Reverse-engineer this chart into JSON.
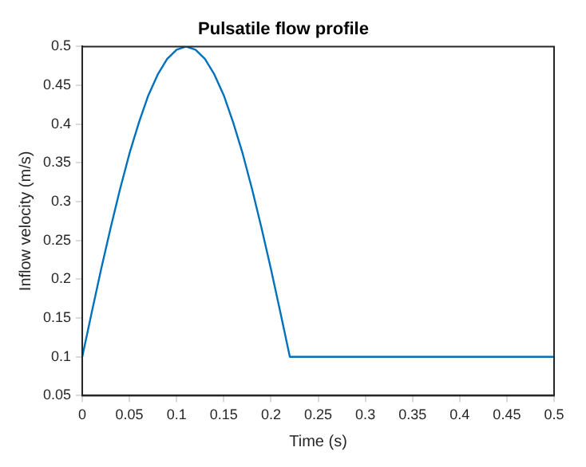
{
  "chart_data": {
    "type": "line",
    "title": "Pulsatile flow profile",
    "xlabel": "Time (s)",
    "ylabel": "Inflow velocity (m/s)",
    "x": [
      0,
      0.01,
      0.02,
      0.03,
      0.04,
      0.05,
      0.06,
      0.07,
      0.08,
      0.09,
      0.1,
      0.11,
      0.12,
      0.13,
      0.14,
      0.15,
      0.16,
      0.17,
      0.18,
      0.19,
      0.2,
      0.21,
      0.22,
      0.5
    ],
    "series": [
      {
        "color": "#0072bd",
        "values": [
          0.1,
          0.157,
          0.213,
          0.266,
          0.316,
          0.362,
          0.402,
          0.437,
          0.464,
          0.484,
          0.496,
          0.5,
          0.496,
          0.484,
          0.464,
          0.437,
          0.402,
          0.362,
          0.316,
          0.266,
          0.213,
          0.157,
          0.1,
          0.1
        ]
      }
    ],
    "xlim": [
      0,
      0.5
    ],
    "xticks": [
      0,
      0.05,
      0.1,
      0.15,
      0.2,
      0.25,
      0.3,
      0.35,
      0.4,
      0.45,
      0.5
    ],
    "ylim": [
      0.05,
      0.5
    ],
    "yticks": [
      0.05,
      0.1,
      0.15,
      0.2,
      0.25,
      0.3,
      0.35,
      0.4,
      0.45,
      0.5
    ],
    "grid": false,
    "legend": false,
    "marker": "none",
    "line_style": "solid"
  }
}
